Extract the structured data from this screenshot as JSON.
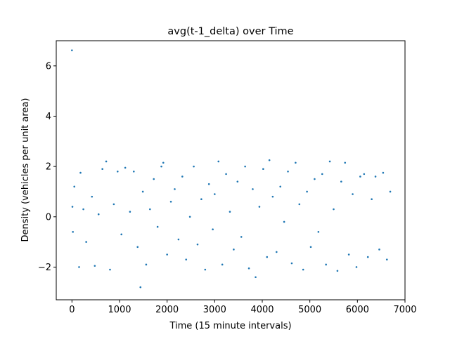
{
  "chart_data": {
    "type": "scatter",
    "title": "avg(t-1_delta) over Time",
    "xlabel": "Time (15 minute intervals)",
    "ylabel": "Density (vehicles per unit area)",
    "xlim": [
      -330,
      7000
    ],
    "ylim": [
      -3.3,
      7.0
    ],
    "xticks": [
      0,
      1000,
      2000,
      3000,
      4000,
      5000,
      6000,
      7000
    ],
    "xtick_labels": [
      "0",
      "1000",
      "2000",
      "3000",
      "4000",
      "5000",
      "6000",
      "7000"
    ],
    "yticks": [
      -2,
      0,
      2,
      4,
      6
    ],
    "ytick_labels": [
      "−2",
      "0",
      "2",
      "4",
      "6"
    ],
    "grid": false,
    "marker_color": "#1f77b4",
    "series": [
      {
        "x": [
          0,
          10,
          20,
          50,
          150,
          180,
          240,
          300,
          420,
          480,
          560,
          640,
          720,
          800,
          880,
          960,
          1040,
          1120,
          1220,
          1300,
          1380,
          1440,
          1490,
          1560,
          1640,
          1720,
          1800,
          1880,
          1920,
          2000,
          2080,
          2160,
          2240,
          2320,
          2400,
          2480,
          2560,
          2640,
          2720,
          2800,
          2880,
          2960,
          3000,
          3080,
          3160,
          3240,
          3320,
          3400,
          3480,
          3560,
          3640,
          3720,
          3800,
          3860,
          3940,
          4020,
          4100,
          4150,
          4220,
          4300,
          4380,
          4460,
          4540,
          4620,
          4700,
          4780,
          4860,
          4940,
          5020,
          5100,
          5180,
          5260,
          5340,
          5420,
          5500,
          5580,
          5660,
          5740,
          5820,
          5900,
          5980,
          6060,
          6140,
          6220,
          6300,
          6380,
          6460,
          6540,
          6620,
          6690
        ],
        "y": [
          6.62,
          0.4,
          -0.6,
          1.2,
          -2.0,
          1.75,
          0.3,
          -1.0,
          0.8,
          -1.95,
          0.1,
          1.9,
          2.2,
          -2.1,
          0.5,
          1.8,
          -0.7,
          1.95,
          0.2,
          1.8,
          -1.2,
          -2.8,
          1.0,
          -1.9,
          0.3,
          1.5,
          -0.4,
          2.0,
          2.15,
          -1.5,
          0.6,
          1.1,
          -0.9,
          1.6,
          -1.7,
          0.0,
          2.0,
          -1.1,
          0.7,
          -2.1,
          1.3,
          -0.5,
          0.9,
          2.2,
          -1.9,
          1.7,
          0.2,
          -1.3,
          1.4,
          -0.8,
          2.0,
          -2.05,
          1.1,
          -2.4,
          0.4,
          1.9,
          -1.6,
          2.25,
          0.8,
          -1.4,
          1.2,
          -0.2,
          1.8,
          -1.85,
          2.15,
          0.5,
          -2.1,
          1.0,
          -1.2,
          1.5,
          -0.6,
          1.7,
          -1.9,
          2.2,
          0.3,
          -2.15,
          1.4,
          2.15,
          -1.5,
          0.9,
          -2.0,
          1.6,
          1.7,
          -1.6,
          0.7,
          1.6,
          -1.3,
          1.75,
          -1.7,
          1.0
        ]
      }
    ]
  }
}
